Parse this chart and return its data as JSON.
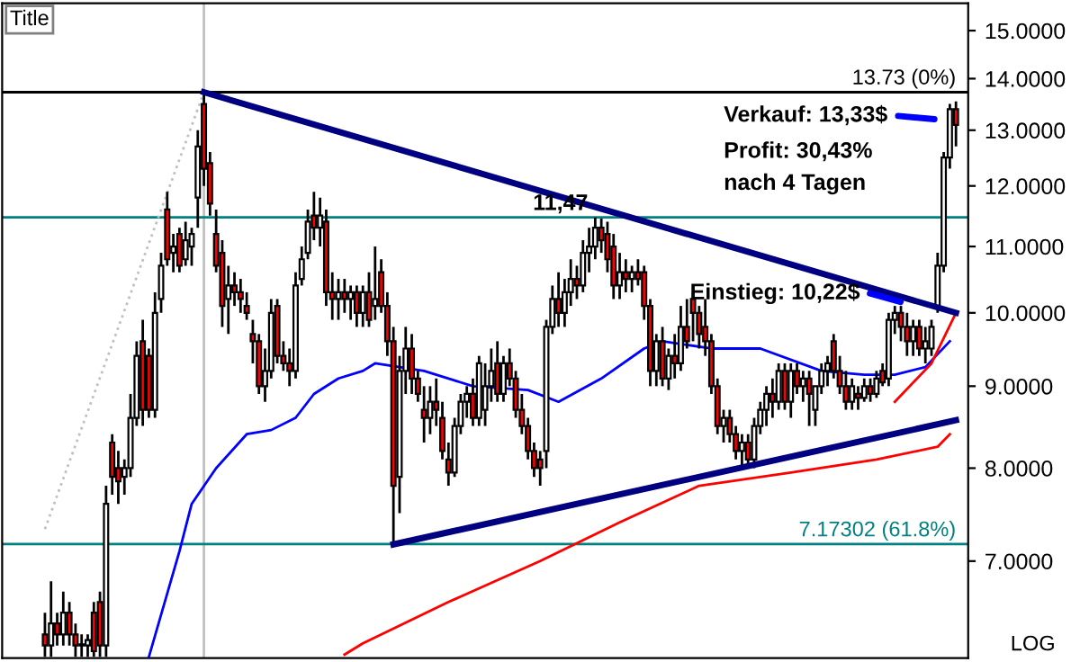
{
  "chart_data": {
    "type": "candlestick",
    "categories": [
      null,
      null,
      null,
      null,
      null,
      null,
      null,
      null,
      null,
      null,
      null,
      null,
      null,
      null,
      null,
      null,
      null,
      null,
      null,
      null,
      null,
      null,
      null,
      null,
      null,
      null,
      null,
      null,
      null,
      null,
      null,
      null,
      null,
      null,
      null,
      null,
      null,
      null,
      null,
      null,
      null,
      null,
      null,
      null,
      null,
      null,
      null,
      null,
      null,
      null,
      null,
      null,
      null,
      null,
      null,
      null,
      null,
      null,
      null,
      null,
      null,
      null,
      null,
      null,
      null,
      null,
      null,
      null,
      null,
      null,
      null,
      null,
      null,
      null,
      null,
      null,
      null,
      null,
      null,
      null,
      null,
      null,
      null,
      null,
      null,
      null,
      null,
      null,
      null,
      null,
      null,
      null,
      null,
      null,
      null,
      null,
      null,
      null,
      null,
      null,
      null,
      null,
      null,
      null,
      null,
      null,
      null,
      null,
      null,
      null,
      null,
      null,
      null,
      null,
      null,
      null,
      null,
      null,
      null,
      null,
      null,
      null,
      null,
      null,
      null,
      null,
      null,
      null,
      null,
      null,
      null,
      null,
      null,
      null,
      null,
      null,
      null,
      null,
      null,
      null,
      null,
      null,
      null,
      null,
      null,
      null,
      null,
      null,
      null,
      null
    ],
    "ohlc": [
      [
        6.3,
        6.5,
        6.1,
        6.2
      ],
      [
        6.2,
        6.8,
        6.1,
        6.4
      ],
      [
        6.4,
        6.5,
        6.2,
        6.3
      ],
      [
        6.3,
        6.7,
        6.2,
        6.5
      ],
      [
        6.5,
        6.6,
        6.2,
        6.3
      ],
      [
        6.3,
        6.4,
        6.1,
        6.2
      ],
      [
        6.2,
        6.3,
        6.1,
        6.2
      ],
      [
        6.2,
        6.3,
        6.1,
        6.25
      ],
      [
        6.5,
        6.6,
        6.1,
        6.15
      ],
      [
        6.6,
        6.7,
        6.1,
        6.2
      ],
      [
        6.2,
        7.8,
        6.1,
        7.6
      ],
      [
        8.3,
        8.4,
        7.7,
        7.9
      ],
      [
        8.0,
        8.2,
        7.6,
        7.85
      ],
      [
        7.9,
        8.1,
        7.7,
        8.0
      ],
      [
        8.0,
        8.9,
        7.9,
        8.6
      ],
      [
        8.6,
        9.6,
        8.5,
        9.4
      ],
      [
        9.6,
        9.9,
        8.5,
        8.7
      ],
      [
        9.4,
        9.5,
        8.6,
        8.7
      ],
      [
        8.7,
        10.3,
        8.6,
        10.0
      ],
      [
        10.2,
        10.9,
        10.0,
        10.7
      ],
      [
        11.6,
        11.9,
        10.7,
        10.8
      ],
      [
        10.9,
        11.2,
        10.6,
        11.0
      ],
      [
        11.2,
        11.3,
        10.6,
        10.7
      ],
      [
        10.8,
        11.4,
        10.7,
        11.1
      ],
      [
        11.0,
        11.3,
        10.7,
        11.2
      ],
      [
        11.8,
        13.0,
        11.3,
        12.7
      ],
      [
        13.5,
        13.73,
        12.0,
        12.3
      ],
      [
        12.4,
        12.6,
        11.5,
        11.7
      ],
      [
        11.2,
        11.6,
        10.6,
        10.7
      ],
      [
        10.9,
        11.1,
        9.8,
        10.1
      ],
      [
        10.2,
        10.7,
        9.7,
        10.4
      ],
      [
        10.4,
        10.6,
        10.1,
        10.3
      ],
      [
        10.3,
        10.5,
        10.0,
        10.2
      ],
      [
        10.1,
        10.3,
        9.9,
        10.0
      ],
      [
        9.7,
        9.9,
        9.3,
        9.6
      ],
      [
        9.6,
        9.7,
        8.9,
        9.0
      ],
      [
        9.0,
        9.5,
        8.8,
        9.2
      ],
      [
        9.2,
        10.2,
        9.1,
        10.0
      ],
      [
        10.1,
        10.2,
        9.3,
        9.4
      ],
      [
        9.4,
        9.6,
        9.2,
        9.3
      ],
      [
        9.3,
        9.5,
        9.0,
        9.2
      ],
      [
        9.2,
        10.6,
        9.1,
        10.4
      ],
      [
        10.5,
        11.0,
        10.4,
        10.8
      ],
      [
        10.9,
        11.6,
        10.8,
        11.4
      ],
      [
        11.5,
        11.9,
        11.1,
        11.3
      ],
      [
        11.3,
        11.8,
        11.0,
        11.5
      ],
      [
        11.4,
        11.6,
        10.1,
        10.3
      ],
      [
        10.3,
        10.6,
        9.9,
        10.2
      ],
      [
        10.2,
        10.5,
        9.9,
        10.3
      ],
      [
        10.3,
        10.5,
        10.0,
        10.2
      ],
      [
        10.2,
        10.4,
        9.9,
        10.3
      ],
      [
        10.3,
        10.4,
        9.8,
        10.0
      ],
      [
        10.0,
        10.4,
        9.8,
        10.3
      ],
      [
        10.3,
        10.6,
        9.8,
        9.9
      ],
      [
        10.1,
        11.0,
        9.9,
        10.2
      ],
      [
        10.6,
        10.8,
        10.0,
        10.1
      ],
      [
        10.1,
        10.3,
        9.4,
        9.6
      ],
      [
        9.6,
        9.8,
        7.17,
        7.8
      ],
      [
        7.9,
        9.4,
        7.5,
        9.2
      ],
      [
        9.2,
        9.8,
        8.9,
        9.5
      ],
      [
        9.5,
        9.7,
        8.9,
        9.1
      ],
      [
        9.1,
        9.2,
        8.8,
        8.9
      ],
      [
        8.7,
        9.0,
        8.3,
        8.6
      ],
      [
        8.6,
        9.0,
        8.4,
        8.8
      ],
      [
        8.8,
        9.1,
        8.5,
        8.7
      ],
      [
        8.6,
        8.8,
        8.1,
        8.2
      ],
      [
        8.1,
        8.3,
        7.8,
        7.95
      ],
      [
        7.95,
        8.6,
        7.9,
        8.5
      ],
      [
        8.5,
        8.9,
        8.4,
        8.8
      ],
      [
        8.8,
        9.0,
        8.6,
        8.9
      ],
      [
        8.9,
        9.1,
        8.5,
        8.6
      ],
      [
        8.6,
        9.4,
        8.5,
        9.3
      ],
      [
        8.7,
        9.3,
        8.5,
        9.0
      ],
      [
        9.0,
        9.5,
        8.8,
        9.2
      ],
      [
        9.3,
        9.6,
        8.8,
        8.9
      ],
      [
        8.9,
        9.4,
        8.8,
        9.3
      ],
      [
        9.3,
        9.5,
        9.0,
        9.1
      ],
      [
        9.1,
        9.2,
        8.6,
        8.7
      ],
      [
        8.7,
        8.9,
        8.4,
        8.5
      ],
      [
        8.5,
        8.6,
        8.1,
        8.2
      ],
      [
        8.2,
        8.3,
        7.9,
        8.0
      ],
      [
        8.1,
        8.2,
        7.8,
        8.0
      ],
      [
        8.2,
        9.9,
        8.0,
        9.8
      ],
      [
        9.8,
        10.4,
        9.7,
        10.2
      ],
      [
        10.2,
        10.6,
        9.8,
        10.0
      ],
      [
        10.0,
        10.5,
        9.8,
        10.3
      ],
      [
        10.3,
        10.8,
        10.1,
        10.5
      ],
      [
        10.5,
        10.7,
        10.2,
        10.4
      ],
      [
        10.4,
        11.1,
        10.3,
        10.9
      ],
      [
        10.9,
        11.3,
        10.6,
        11.0
      ],
      [
        11.0,
        11.47,
        10.8,
        11.3
      ],
      [
        11.3,
        11.45,
        10.9,
        11.1
      ],
      [
        11.2,
        11.4,
        10.6,
        10.8
      ],
      [
        11.0,
        11.2,
        10.2,
        10.4
      ],
      [
        10.4,
        10.9,
        10.2,
        10.6
      ],
      [
        10.6,
        10.8,
        10.3,
        10.5
      ],
      [
        10.5,
        10.7,
        10.3,
        10.6
      ],
      [
        10.6,
        10.8,
        10.4,
        10.5
      ],
      [
        10.6,
        10.7,
        9.9,
        10.1
      ],
      [
        10.1,
        10.2,
        9.0,
        9.2
      ],
      [
        9.2,
        9.7,
        9.0,
        9.6
      ],
      [
        9.6,
        9.8,
        9.0,
        9.1
      ],
      [
        9.1,
        9.5,
        8.95,
        9.4
      ],
      [
        9.4,
        9.7,
        9.1,
        9.3
      ],
      [
        9.3,
        10.1,
        9.2,
        9.8
      ],
      [
        9.8,
        10.2,
        9.5,
        9.6
      ],
      [
        10.2,
        10.3,
        9.6,
        10.0
      ],
      [
        10.0,
        10.1,
        9.5,
        9.7
      ],
      [
        9.8,
        10.2,
        9.4,
        9.6
      ],
      [
        9.6,
        9.7,
        8.9,
        9.0
      ],
      [
        9.0,
        9.1,
        8.4,
        8.5
      ],
      [
        8.5,
        8.7,
        8.3,
        8.6
      ],
      [
        8.6,
        8.7,
        8.3,
        8.4
      ],
      [
        8.4,
        8.5,
        8.1,
        8.2
      ],
      [
        8.2,
        8.4,
        8.0,
        8.3
      ],
      [
        8.3,
        8.4,
        8.0,
        8.1
      ],
      [
        8.1,
        8.6,
        8.0,
        8.5
      ],
      [
        8.5,
        8.8,
        8.4,
        8.7
      ],
      [
        8.7,
        9.0,
        8.5,
        8.9
      ],
      [
        8.9,
        9.1,
        8.6,
        8.8
      ],
      [
        8.8,
        9.3,
        8.7,
        9.2
      ],
      [
        9.2,
        9.3,
        8.7,
        8.8
      ],
      [
        8.8,
        9.3,
        8.6,
        9.2
      ],
      [
        9.2,
        9.3,
        8.9,
        9.0
      ],
      [
        9.0,
        9.2,
        8.8,
        9.1
      ],
      [
        9.1,
        9.2,
        8.5,
        8.9
      ],
      [
        8.7,
        9.0,
        8.5,
        9.0
      ],
      [
        9.0,
        9.3,
        8.9,
        9.2
      ],
      [
        9.2,
        9.4,
        9.0,
        9.3
      ],
      [
        9.6,
        9.7,
        9.1,
        9.2
      ],
      [
        9.2,
        9.4,
        8.9,
        9.0
      ],
      [
        9.0,
        9.2,
        8.7,
        8.8
      ],
      [
        8.8,
        9.1,
        8.7,
        9.0
      ],
      [
        8.9,
        9.0,
        8.7,
        8.85
      ],
      [
        8.85,
        9.1,
        8.8,
        9.0
      ],
      [
        9.0,
        9.1,
        8.8,
        8.9
      ],
      [
        8.9,
        9.2,
        8.85,
        9.1
      ],
      [
        9.2,
        9.3,
        9.0,
        9.05
      ],
      [
        9.1,
        10.0,
        9.0,
        9.9
      ],
      [
        9.9,
        10.1,
        9.7,
        10.0
      ],
      [
        10.0,
        10.1,
        9.6,
        9.8
      ],
      [
        9.8,
        10.0,
        9.4,
        9.6
      ],
      [
        9.6,
        9.9,
        9.4,
        9.8
      ],
      [
        9.8,
        9.9,
        9.4,
        9.5
      ],
      [
        9.5,
        9.8,
        9.3,
        9.6
      ],
      [
        9.5,
        9.9,
        9.4,
        9.8
      ],
      [
        10.1,
        10.9,
        10.0,
        10.7
      ],
      [
        10.7,
        12.6,
        10.6,
        12.5
      ],
      [
        12.5,
        13.5,
        12.3,
        13.4
      ],
      [
        13.4,
        13.55,
        12.7,
        13.1
      ]
    ],
    "series": [
      {
        "type": "line",
        "color": "#0000ff",
        "line_style": "solid",
        "values": [
          null,
          null,
          null,
          null,
          null,
          null,
          null,
          null,
          null,
          null,
          null,
          null,
          null,
          null,
          null,
          null,
          null,
          6.1,
          null,
          null,
          null,
          null,
          7.1,
          null,
          7.6,
          null,
          null,
          null,
          8.0,
          null,
          null,
          null,
          null,
          8.4,
          null,
          null,
          null,
          8.45,
          null,
          null,
          null,
          8.6,
          null,
          null,
          8.9,
          null,
          null,
          null,
          9.1,
          null,
          null,
          null,
          9.2,
          null,
          9.3,
          null,
          null,
          null,
          null,
          null,
          null,
          null,
          9.2,
          null,
          null,
          null,
          null,
          null,
          null,
          null,
          9.0,
          null,
          null,
          null,
          null,
          null,
          null,
          null,
          null,
          8.95,
          null,
          null,
          null,
          null,
          8.8,
          null,
          null,
          null,
          null,
          null,
          null,
          9.1,
          null,
          null,
          null,
          null,
          null,
          null,
          9.5,
          null,
          null,
          9.6,
          null,
          null,
          null,
          null,
          null,
          null,
          null,
          9.5,
          null,
          null,
          null,
          null,
          null,
          null,
          null,
          9.5,
          null,
          null,
          null,
          null,
          null,
          null,
          null,
          null,
          null,
          9.2,
          null,
          null,
          null,
          null,
          null,
          null,
          9.15,
          null,
          null,
          null,
          null,
          9.15,
          null,
          null,
          null,
          null,
          9.25,
          null,
          null,
          null,
          9.6,
          null
        ]
      },
      {
        "type": "line",
        "color": "#ff0000",
        "line_style": "solid",
        "values": [
          null,
          null,
          null,
          null,
          null,
          null,
          null,
          null,
          null,
          null,
          null,
          null,
          null,
          null,
          null,
          null,
          null,
          null,
          null,
          null,
          null,
          null,
          null,
          null,
          null,
          null,
          null,
          null,
          null,
          null,
          null,
          null,
          null,
          null,
          null,
          null,
          null,
          null,
          null,
          null,
          null,
          null,
          null,
          null,
          null,
          null,
          null,
          null,
          null,
          6.12,
          null,
          null,
          6.22,
          null,
          null,
          null,
          null,
          null,
          null,
          null,
          null,
          null,
          null,
          null,
          null,
          null,
          6.6,
          null,
          null,
          null,
          null,
          null,
          null,
          null,
          null,
          null,
          null,
          null,
          null,
          null,
          null,
          7.0,
          null,
          null,
          null,
          null,
          null,
          null,
          null,
          null,
          null,
          null,
          null,
          null,
          7.4,
          null,
          null,
          null,
          null,
          null,
          null,
          null,
          null,
          null,
          null,
          null,
          null,
          7.8,
          null,
          null,
          null,
          null,
          null,
          null,
          null,
          null,
          null,
          null,
          null,
          null,
          null,
          null,
          7.95,
          null,
          null,
          null,
          null,
          null,
          null,
          null,
          null,
          null,
          null,
          null,
          null,
          null,
          8.1,
          null,
          null,
          null,
          null,
          null,
          null,
          null,
          null,
          null,
          8.25,
          null,
          8.4,
          null
        ]
      },
      {
        "type": "line",
        "color": "#ff0000",
        "line_style": "solid",
        "values": [
          null,
          null,
          null,
          null,
          null,
          null,
          null,
          null,
          null,
          null,
          null,
          null,
          null,
          null,
          null,
          null,
          null,
          null,
          null,
          null,
          null,
          null,
          null,
          null,
          null,
          null,
          null,
          null,
          null,
          null,
          null,
          null,
          null,
          null,
          null,
          null,
          null,
          null,
          null,
          null,
          null,
          null,
          null,
          null,
          null,
          null,
          null,
          null,
          null,
          null,
          null,
          null,
          null,
          null,
          null,
          null,
          null,
          null,
          null,
          null,
          null,
          null,
          null,
          null,
          null,
          null,
          null,
          null,
          null,
          null,
          null,
          null,
          null,
          null,
          null,
          null,
          null,
          null,
          null,
          null,
          null,
          null,
          null,
          null,
          null,
          null,
          null,
          null,
          null,
          null,
          null,
          null,
          null,
          null,
          null,
          null,
          null,
          null,
          null,
          null,
          null,
          null,
          null,
          null,
          null,
          null,
          null,
          null,
          null,
          null,
          null,
          null,
          null,
          null,
          null,
          null,
          null,
          null,
          null,
          null,
          null,
          null,
          null,
          null,
          null,
          null,
          null,
          null,
          null,
          null,
          null,
          null,
          null,
          null,
          null,
          null,
          null,
          null,
          null,
          8.8,
          null,
          null,
          null,
          null,
          null,
          9.3,
          null,
          null,
          null,
          10.0
        ]
      },
      {
        "type": "line",
        "color": "#c0c0c0",
        "line_style": "dotted",
        "values": [
          7.33,
          null,
          null,
          null,
          null,
          null,
          null,
          null,
          null,
          null,
          null,
          null,
          null,
          null,
          null,
          null,
          null,
          null,
          null,
          null,
          null,
          null,
          null,
          null,
          null,
          null,
          13.73,
          null,
          null,
          null,
          null,
          null,
          null,
          null,
          null,
          null,
          null,
          null,
          null,
          null,
          null,
          null,
          null,
          null,
          null,
          null,
          null,
          null,
          null,
          null,
          null,
          null,
          null,
          null,
          null,
          null,
          null,
          null,
          null,
          null,
          null,
          null,
          null,
          null,
          null,
          null,
          null,
          null,
          null,
          null,
          null,
          null,
          null,
          null,
          null,
          null,
          null,
          null,
          null,
          null,
          null,
          null,
          null,
          null,
          null,
          null,
          null,
          null,
          null,
          null,
          null,
          null,
          null,
          null,
          null,
          null,
          null,
          null,
          null,
          null,
          null,
          null,
          null,
          null,
          null,
          null,
          null,
          null,
          null,
          null,
          null,
          null,
          null,
          null,
          null,
          null,
          null,
          null,
          null,
          null,
          null,
          null,
          null,
          null,
          null,
          null,
          null,
          null,
          null,
          null,
          null,
          null,
          null,
          null,
          null,
          null,
          null,
          null,
          null,
          null,
          null,
          null,
          null,
          null,
          null,
          null,
          null,
          null,
          null,
          null
        ]
      },
      {
        "type": "line",
        "color": "#000080",
        "line_style": "solid",
        "values": [
          null,
          null,
          null,
          null,
          null,
          null,
          null,
          null,
          null,
          null,
          null,
          null,
          null,
          null,
          null,
          null,
          null,
          null,
          null,
          null,
          null,
          null,
          null,
          null,
          null,
          null,
          13.73,
          null,
          null,
          null,
          null,
          null,
          null,
          null,
          null,
          null,
          null,
          null,
          null,
          null,
          null,
          null,
          null,
          null,
          null,
          null,
          null,
          null,
          null,
          null,
          null,
          null,
          null,
          null,
          null,
          null,
          null,
          null,
          null,
          null,
          null,
          null,
          null,
          null,
          null,
          null,
          null,
          null,
          null,
          null,
          null,
          null,
          null,
          null,
          null,
          null,
          null,
          null,
          null,
          null,
          null,
          null,
          null,
          null,
          null,
          null,
          null,
          null,
          null,
          null,
          null,
          null,
          null,
          null,
          null,
          null,
          null,
          null,
          null,
          null,
          null,
          null,
          null,
          null,
          null,
          null,
          null,
          null,
          null,
          null,
          null,
          null,
          null,
          null,
          null,
          null,
          null,
          null,
          null,
          null,
          null,
          null,
          null,
          null,
          null,
          null,
          null,
          null,
          null,
          null,
          null,
          null,
          null,
          null,
          null,
          null,
          null,
          null,
          null,
          null,
          null,
          null,
          null,
          null,
          null,
          null,
          null,
          null,
          null,
          10.0
        ]
      },
      {
        "type": "line",
        "color": "#000080",
        "line_style": "solid",
        "values": [
          null,
          null,
          null,
          null,
          null,
          null,
          null,
          null,
          null,
          null,
          null,
          null,
          null,
          null,
          null,
          null,
          null,
          null,
          null,
          null,
          null,
          null,
          null,
          null,
          null,
          null,
          null,
          null,
          null,
          null,
          null,
          null,
          null,
          null,
          null,
          null,
          null,
          null,
          null,
          null,
          null,
          null,
          null,
          null,
          null,
          null,
          null,
          null,
          null,
          null,
          null,
          null,
          null,
          null,
          null,
          null,
          null,
          7.17,
          null,
          null,
          null,
          null,
          null,
          null,
          null,
          null,
          null,
          null,
          null,
          null,
          null,
          null,
          null,
          null,
          null,
          null,
          null,
          null,
          null,
          null,
          null,
          null,
          null,
          null,
          null,
          null,
          null,
          null,
          null,
          null,
          null,
          null,
          null,
          null,
          null,
          null,
          null,
          null,
          null,
          null,
          null,
          null,
          null,
          null,
          null,
          null,
          null,
          null,
          null,
          null,
          null,
          null,
          null,
          null,
          null,
          null,
          null,
          null,
          null,
          null,
          null,
          null,
          null,
          null,
          null,
          null,
          null,
          null,
          null,
          null,
          null,
          null,
          null,
          null,
          null,
          null,
          null,
          null,
          null,
          null,
          null,
          null,
          null,
          null,
          null,
          null,
          null,
          null,
          null,
          8.57
        ]
      }
    ],
    "ref_lines": [
      {
        "axis": "y",
        "value": 13.73,
        "label": "13.73 (0%)",
        "color": "#000000"
      },
      {
        "axis": "y",
        "value": 11.47,
        "color": "#008080"
      },
      {
        "axis": "y",
        "value": 7.17302,
        "label": "7.17302 (61.8%)",
        "color": "#008080"
      }
    ],
    "ylim": [
      6.09,
      15.6
    ],
    "yticks": [
      {
        "value": 7,
        "label": "7.0000"
      },
      {
        "value": 8,
        "label": "8.0000"
      },
      {
        "value": 9,
        "label": "9.0000"
      },
      {
        "value": 10,
        "label": "10.0000"
      },
      {
        "value": 11,
        "label": "11.0000"
      },
      {
        "value": 12,
        "label": "12.0000"
      },
      {
        "value": 13,
        "label": "13.0000"
      },
      {
        "value": 14,
        "label": "14.0000"
      },
      {
        "value": 15,
        "label": "15.0000"
      }
    ],
    "log": true,
    "tick_labels": "y",
    "grid": false,
    "annotations": [
      "Title",
      {
        "text": "11,47",
        "y": 11.47
      },
      "Einstieg: 10,22$",
      "Verkauf: 13,33$",
      "Profit: 30,43%",
      "nach 4 Tagen",
      "LOG"
    ]
  }
}
